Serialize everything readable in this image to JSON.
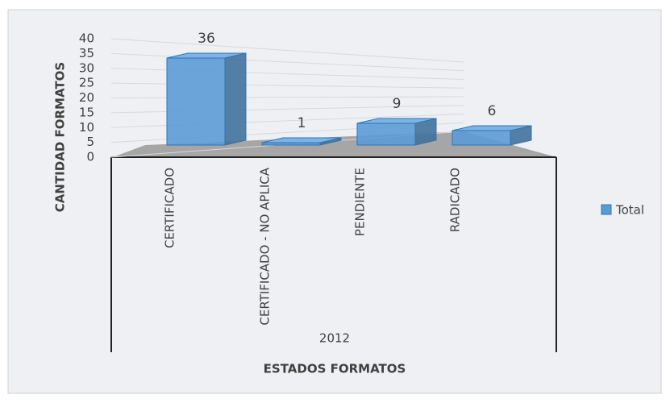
{
  "chart_data": {
    "type": "bar3d",
    "categories": [
      "CERTIFICADO",
      "CERTIFICADO - NO APLICA",
      "PENDIENTE",
      "RADICADO"
    ],
    "group_label": "2012",
    "x_label": "ESTADOS FORMATOS",
    "y_label": "CANTIDAD FORMATOS",
    "series": [
      {
        "name": "Total",
        "color": "#5b9bd5",
        "values": [
          36,
          1,
          9,
          6
        ]
      }
    ],
    "ylim": [
      0,
      40
    ],
    "yticks": [
      0,
      5,
      10,
      15,
      20,
      25,
      30,
      35,
      40
    ],
    "grid": true,
    "legend": "right"
  }
}
